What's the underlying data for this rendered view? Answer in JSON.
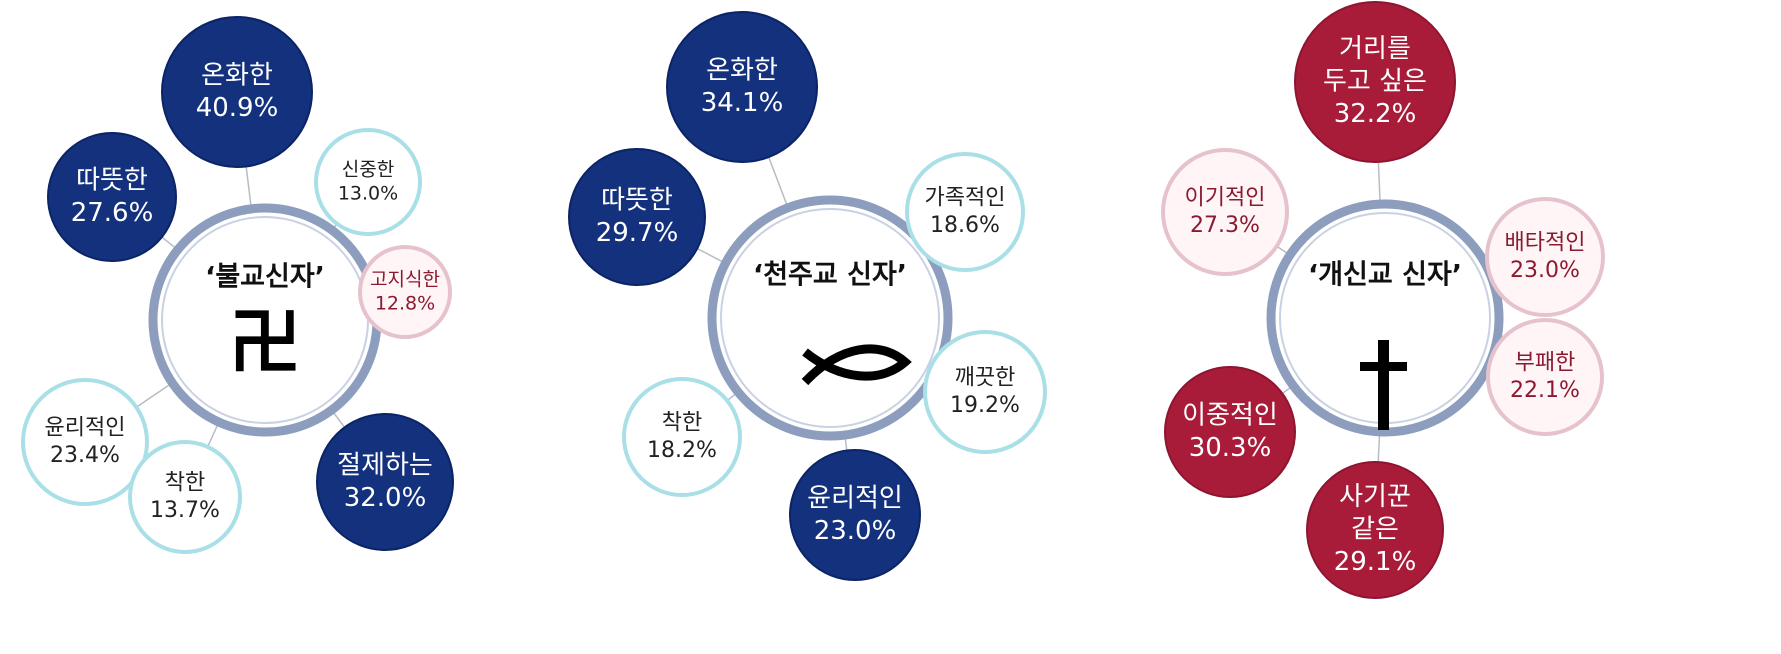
{
  "groups": [
    {
      "center": "‘불교신자’",
      "symbol": "卍",
      "nodes": [
        {
          "label": [
            "온화한"
          ],
          "value": "40.9%",
          "color": "#13317c"
        },
        {
          "label": [
            "따뜻한"
          ],
          "value": "27.6%",
          "color": "#13317c"
        },
        {
          "label": [
            "신중한"
          ],
          "value": "13.0%",
          "color": "#ffffff"
        },
        {
          "label": [
            "고지식한"
          ],
          "value": "12.8%",
          "color": "#fff5f7"
        },
        {
          "label": [
            "윤리적인"
          ],
          "value": "23.4%",
          "color": "#ffffff"
        },
        {
          "label": [
            "착한"
          ],
          "value": "13.7%",
          "color": "#ffffff"
        },
        {
          "label": [
            "절제하는"
          ],
          "value": "32.0%",
          "color": "#13317c"
        }
      ]
    },
    {
      "center": "‘천주교 신자’",
      "nodes": [
        {
          "label": [
            "온화한"
          ],
          "value": "34.1%",
          "color": "#13317c"
        },
        {
          "label": [
            "따뜻한"
          ],
          "value": "29.7%",
          "color": "#13317c"
        },
        {
          "label": [
            "가족적인"
          ],
          "value": "18.6%",
          "color": "#ffffff"
        },
        {
          "label": [
            "깨끗한"
          ],
          "value": "19.2%",
          "color": "#ffffff"
        },
        {
          "label": [
            "착한"
          ],
          "value": "18.2%",
          "color": "#ffffff"
        },
        {
          "label": [
            "윤리적인"
          ],
          "value": "23.0%",
          "color": "#13317c"
        }
      ]
    },
    {
      "center": "‘개신교 신자’",
      "nodes": [
        {
          "label": [
            "거리를",
            "두고 싶은"
          ],
          "value": "32.2%",
          "color": "#a81c3a"
        },
        {
          "label": [
            "이기적인"
          ],
          "value": "27.3%",
          "color": "#fff5f7"
        },
        {
          "label": [
            "배타적인"
          ],
          "value": "23.0%",
          "color": "#fff5f7"
        },
        {
          "label": [
            "부패한"
          ],
          "value": "22.1%",
          "color": "#fff5f7"
        },
        {
          "label": [
            "이중적인"
          ],
          "value": "30.3%",
          "color": "#a81c3a"
        },
        {
          "label": [
            "사기꾼",
            "같은"
          ],
          "value": "29.1%",
          "color": "#a81c3a"
        }
      ]
    }
  ]
}
